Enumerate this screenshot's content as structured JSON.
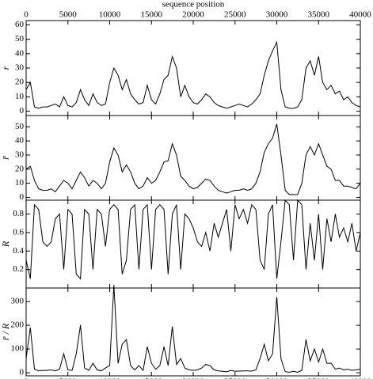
{
  "chart_data": [
    {
      "type": "line",
      "x_label": "sequence position",
      "y_label": "r",
      "xtick_labels": "top",
      "xlim": [
        0,
        40000
      ],
      "xticks": [
        0,
        5000,
        10000,
        15000,
        20000,
        25000,
        30000,
        35000,
        40000
      ],
      "ylim": [
        -3,
        63
      ],
      "yticks": [
        0,
        10,
        20,
        30,
        40,
        50,
        60
      ],
      "x": [
        0,
        500,
        1000,
        1500,
        2000,
        2500,
        3000,
        3500,
        4000,
        4500,
        5000,
        5500,
        6000,
        6500,
        7000,
        7500,
        8000,
        8500,
        9000,
        9500,
        10000,
        10500,
        11000,
        11500,
        12000,
        12500,
        13000,
        13500,
        14000,
        14500,
        15000,
        15500,
        16000,
        16500,
        17000,
        17500,
        18000,
        18500,
        19000,
        19500,
        20000,
        20500,
        21000,
        21500,
        22000,
        22500,
        23000,
        23500,
        24000,
        24500,
        25000,
        25500,
        26000,
        26500,
        27000,
        27500,
        28000,
        28500,
        29000,
        29500,
        30000,
        30500,
        31000,
        31500,
        32000,
        32500,
        33000,
        33500,
        34000,
        34500,
        35000,
        35500,
        36000,
        36500,
        37000,
        37500,
        38000,
        38500,
        39000,
        39500,
        40000
      ],
      "series": [
        {
          "color": "#000000",
          "values": [
            15,
            20,
            3,
            2,
            3,
            3,
            4,
            5,
            3,
            10,
            4,
            3,
            6,
            15,
            8,
            4,
            12,
            6,
            4,
            5,
            20,
            30,
            25,
            15,
            22,
            12,
            8,
            5,
            6,
            18,
            8,
            5,
            12,
            22,
            25,
            38,
            30,
            10,
            18,
            10,
            6,
            5,
            8,
            12,
            10,
            6,
            4,
            3,
            2,
            3,
            4,
            5,
            4,
            3,
            5,
            8,
            12,
            25,
            35,
            42,
            48,
            15,
            3,
            2,
            2,
            3,
            8,
            30,
            35,
            25,
            38,
            20,
            15,
            18,
            12,
            14,
            8,
            10,
            6,
            4,
            3
          ]
        }
      ]
    },
    {
      "type": "line",
      "y_label": "r̄",
      "xtick_labels": "none",
      "xlim": [
        0,
        40000
      ],
      "xticks": [
        0,
        5000,
        10000,
        15000,
        20000,
        25000,
        30000,
        35000,
        40000
      ],
      "ylim": [
        -2,
        58
      ],
      "yticks": [
        0,
        10,
        20,
        30,
        40,
        50
      ],
      "x": [
        0,
        500,
        1000,
        1500,
        2000,
        2500,
        3000,
        3500,
        4000,
        4500,
        5000,
        5500,
        6000,
        6500,
        7000,
        7500,
        8000,
        8500,
        9000,
        9500,
        10000,
        10500,
        11000,
        11500,
        12000,
        12500,
        13000,
        13500,
        14000,
        14500,
        15000,
        15500,
        16000,
        16500,
        17000,
        17500,
        18000,
        18500,
        19000,
        19500,
        20000,
        20500,
        21000,
        21500,
        22000,
        22500,
        23000,
        23500,
        24000,
        24500,
        25000,
        25500,
        26000,
        26500,
        27000,
        27500,
        28000,
        28500,
        29000,
        29500,
        30000,
        30500,
        31000,
        31500,
        32000,
        32500,
        33000,
        33500,
        34000,
        34500,
        35000,
        35500,
        36000,
        36500,
        37000,
        37500,
        38000,
        38500,
        39000,
        39500,
        40000
      ],
      "series": [
        {
          "color": "#000000",
          "values": [
            20,
            22,
            12,
            6,
            5,
            5,
            6,
            4,
            8,
            12,
            10,
            6,
            12,
            18,
            14,
            8,
            12,
            10,
            6,
            10,
            25,
            35,
            30,
            18,
            23,
            18,
            10,
            6,
            8,
            14,
            10,
            12,
            18,
            25,
            26,
            38,
            30,
            15,
            12,
            8,
            6,
            7,
            10,
            13,
            12,
            8,
            5,
            4,
            3,
            4,
            5,
            5,
            6,
            5,
            6,
            10,
            18,
            32,
            38,
            42,
            52,
            30,
            5,
            2,
            2,
            2,
            10,
            30,
            36,
            30,
            38,
            30,
            22,
            20,
            12,
            12,
            8,
            8,
            7,
            6,
            10
          ]
        }
      ]
    },
    {
      "type": "line",
      "y_label": "R",
      "xtick_labels": "none",
      "xlim": [
        0,
        40000
      ],
      "xticks": [
        0,
        5000,
        10000,
        15000,
        20000,
        25000,
        30000,
        35000,
        40000
      ],
      "ylim": [
        0,
        0.95
      ],
      "yticks": [
        0.2,
        0.4,
        0.6,
        0.8
      ],
      "x": [
        0,
        500,
        1000,
        1500,
        2000,
        2500,
        3000,
        3500,
        4000,
        4500,
        5000,
        5500,
        6000,
        6500,
        7000,
        7500,
        8000,
        8500,
        9000,
        9500,
        10000,
        10500,
        11000,
        11500,
        12000,
        12500,
        13000,
        13500,
        14000,
        14500,
        15000,
        15500,
        16000,
        16500,
        17000,
        17500,
        18000,
        18500,
        19000,
        19500,
        20000,
        20500,
        21000,
        21500,
        22000,
        22500,
        23000,
        23500,
        24000,
        24500,
        25000,
        25500,
        26000,
        26500,
        27000,
        27500,
        28000,
        28500,
        29000,
        29500,
        30000,
        30500,
        31000,
        31500,
        32000,
        32500,
        33000,
        33500,
        34000,
        34500,
        35000,
        35500,
        36000,
        36500,
        37000,
        37500,
        38000,
        38500,
        39000,
        39500,
        40000
      ],
      "series": [
        {
          "color": "#000000",
          "values": [
            0.3,
            0.1,
            0.9,
            0.85,
            0.5,
            0.45,
            0.5,
            0.75,
            0.8,
            0.2,
            0.85,
            0.8,
            0.15,
            0.1,
            0.85,
            0.8,
            0.2,
            0.85,
            0.8,
            0.45,
            0.85,
            0.9,
            0.85,
            0.15,
            0.3,
            0.85,
            0.9,
            0.2,
            0.85,
            0.9,
            0.2,
            0.85,
            0.9,
            0.85,
            0.15,
            0.8,
            0.9,
            0.2,
            0.8,
            0.75,
            0.65,
            0.5,
            0.45,
            0.6,
            0.4,
            0.7,
            0.55,
            0.7,
            0.85,
            0.4,
            0.9,
            0.75,
            0.85,
            0.7,
            0.9,
            0.85,
            0.3,
            0.2,
            0.8,
            0.9,
            0.1,
            0.5,
            0.95,
            0.9,
            0.3,
            0.95,
            0.9,
            0.2,
            0.7,
            0.3,
            0.8,
            0.2,
            0.75,
            0.5,
            0.8,
            0.55,
            0.65,
            0.5,
            0.7,
            0.4,
            0.6
          ]
        }
      ]
    },
    {
      "type": "line",
      "y_label": "r̄ / R",
      "xtick_labels": "bottom",
      "xlim": [
        0,
        40000
      ],
      "xticks": [
        0,
        5000,
        10000,
        15000,
        20000,
        25000,
        30000,
        35000,
        40000
      ],
      "ylim": [
        -13,
        357
      ],
      "yticks": [
        0,
        100,
        200,
        300
      ],
      "x": [
        0,
        500,
        1000,
        1500,
        2000,
        2500,
        3000,
        3500,
        4000,
        4500,
        5000,
        5500,
        6000,
        6500,
        7000,
        7500,
        8000,
        8500,
        9000,
        9500,
        10000,
        10500,
        11000,
        11500,
        12000,
        12500,
        13000,
        13500,
        14000,
        14500,
        15000,
        15500,
        16000,
        16500,
        17000,
        17500,
        18000,
        18500,
        19000,
        19500,
        20000,
        20500,
        21000,
        21500,
        22000,
        22500,
        23000,
        23500,
        24000,
        24500,
        25000,
        25500,
        26000,
        26500,
        27000,
        27500,
        28000,
        28500,
        29000,
        29500,
        30000,
        30500,
        31000,
        31500,
        32000,
        32500,
        33000,
        33500,
        34000,
        34500,
        35000,
        35500,
        36000,
        36500,
        37000,
        37500,
        38000,
        38500,
        39000,
        39500,
        40000
      ],
      "series": [
        {
          "color": "#000000",
          "values": [
            60,
            190,
            15,
            8,
            10,
            10,
            12,
            8,
            15,
            80,
            12,
            10,
            80,
            200,
            20,
            10,
            40,
            12,
            8,
            20,
            30,
            370,
            40,
            120,
            140,
            30,
            12,
            30,
            10,
            110,
            40,
            15,
            30,
            110,
            30,
            195,
            35,
            60,
            20,
            12,
            10,
            12,
            20,
            35,
            30,
            12,
            8,
            6,
            4,
            10,
            6,
            7,
            8,
            8,
            7,
            12,
            60,
            120,
            50,
            80,
            320,
            60,
            5,
            2,
            6,
            2,
            10,
            140,
            50,
            100,
            45,
            100,
            40,
            40,
            15,
            20,
            12,
            15,
            10,
            12,
            15
          ]
        }
      ]
    }
  ]
}
